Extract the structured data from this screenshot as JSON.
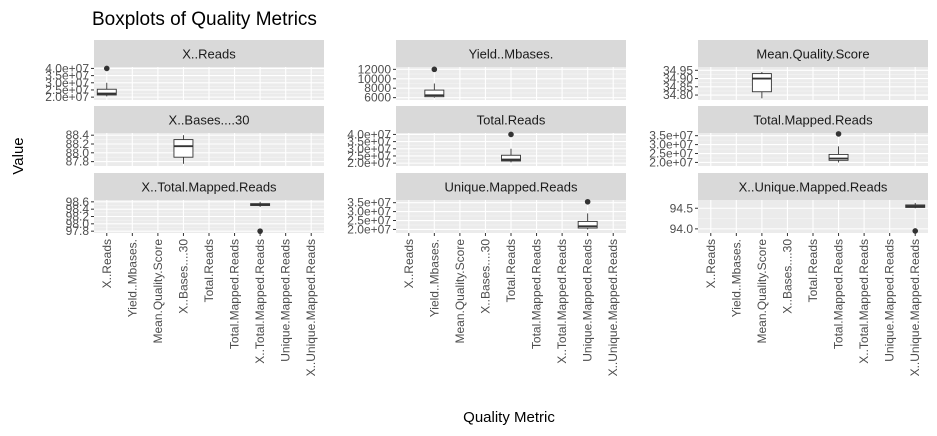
{
  "chart_data": {
    "type": "boxplot",
    "title": "Boxplots of Quality Metrics",
    "xlabel": "Quality Metric",
    "ylabel": "Value",
    "categories": [
      "X..Reads",
      "Yield..Mbases.",
      "Mean.Quality.Score",
      "X..Bases....30",
      "Total.Reads",
      "Total.Mapped.Reads",
      "X..Total.Mapped.Reads",
      "Unique.Mapped.Reads",
      "X..Unique.Mapped.Reads"
    ],
    "facet_scales": "free_y",
    "grid": true,
    "panels": [
      {
        "title": "X..Reads",
        "category": "X..Reads",
        "ylim": [
          18000000,
          41000000
        ],
        "ticks": [
          {
            "v": 20000000,
            "label": "2.0e+07"
          },
          {
            "v": 25000000,
            "label": "2.5e+07"
          },
          {
            "v": 30000000,
            "label": "3.0e+07"
          },
          {
            "v": 35000000,
            "label": "3.5e+07"
          },
          {
            "v": 40000000,
            "label": "4.0e+07"
          }
        ],
        "box": {
          "min": 20500000,
          "q1": 21500000,
          "median": 22500000,
          "q3": 25500000,
          "max": 30000000,
          "outliers": [
            40000000
          ]
        }
      },
      {
        "title": "Yield..Mbases.",
        "category": "Yield..Mbases.",
        "ylim": [
          5500,
          12500
        ],
        "ticks": [
          {
            "v": 6000,
            "label": "6000"
          },
          {
            "v": 8000,
            "label": "8000"
          },
          {
            "v": 10000,
            "label": "10000"
          },
          {
            "v": 12000,
            "label": "12000"
          }
        ],
        "box": {
          "min": 6000,
          "q1": 6200,
          "median": 6500,
          "q3": 7600,
          "max": 9000,
          "outliers": [
            12000
          ]
        }
      },
      {
        "title": "Mean.Quality.Score",
        "category": "Mean.Quality.Score",
        "ylim": [
          34.77,
          34.97
        ],
        "ticks": [
          {
            "v": 34.8,
            "label": "34.80"
          },
          {
            "v": 34.85,
            "label": "34.85"
          },
          {
            "v": 34.9,
            "label": "34.90"
          },
          {
            "v": 34.95,
            "label": "34.95"
          }
        ],
        "box": {
          "min": 34.78,
          "q1": 34.82,
          "median": 34.9,
          "q3": 34.93,
          "max": 34.94,
          "outliers": []
        }
      },
      {
        "title": "X..Bases....30",
        "category": "X..Bases....30",
        "ylim": [
          87.7,
          88.45
        ],
        "ticks": [
          {
            "v": 87.8,
            "label": "87.8"
          },
          {
            "v": 88.0,
            "label": "88.0"
          },
          {
            "v": 88.2,
            "label": "88.2"
          },
          {
            "v": 88.4,
            "label": "88.4"
          }
        ],
        "box": {
          "min": 87.75,
          "q1": 87.9,
          "median": 88.15,
          "q3": 88.3,
          "max": 88.4,
          "outliers": []
        }
      },
      {
        "title": "Total.Reads",
        "category": "Total.Reads",
        "ylim": [
          18000000,
          41000000
        ],
        "ticks": [
          {
            "v": 20000000,
            "label": "2.0e+07"
          },
          {
            "v": 25000000,
            "label": "2.5e+07"
          },
          {
            "v": 30000000,
            "label": "3.0e+07"
          },
          {
            "v": 35000000,
            "label": "3.5e+07"
          },
          {
            "v": 40000000,
            "label": "4.0e+07"
          }
        ],
        "box": {
          "min": 20500000,
          "q1": 21500000,
          "median": 22500000,
          "q3": 25500000,
          "max": 30000000,
          "outliers": [
            40000000
          ]
        }
      },
      {
        "title": "Total.Mapped.Reads",
        "category": "Total.Mapped.Reads",
        "ylim": [
          18000000,
          36500000
        ],
        "ticks": [
          {
            "v": 20000000,
            "label": "2.0e+07"
          },
          {
            "v": 25000000,
            "label": "2.5e+07"
          },
          {
            "v": 30000000,
            "label": "3.0e+07"
          },
          {
            "v": 35000000,
            "label": "3.5e+07"
          }
        ],
        "box": {
          "min": 20000000,
          "q1": 21200000,
          "median": 22200000,
          "q3": 24500000,
          "max": 29000000,
          "outliers": [
            36000000
          ]
        }
      },
      {
        "title": "X..Total.Mapped.Reads",
        "category": "X..Total.Mapped.Reads",
        "ylim": [
          97.75,
          98.65
        ],
        "ticks": [
          {
            "v": 97.8,
            "label": "97.8"
          },
          {
            "v": 98.0,
            "label": "98.0"
          },
          {
            "v": 98.2,
            "label": "98.2"
          },
          {
            "v": 98.4,
            "label": "98.4"
          },
          {
            "v": 98.6,
            "label": "98.6"
          }
        ],
        "box": {
          "min": 98.46,
          "q1": 98.5,
          "median": 98.52,
          "q3": 98.55,
          "max": 98.6,
          "outliers": [
            97.8
          ]
        }
      },
      {
        "title": "Unique.Mapped.Reads",
        "category": "Unique.Mapped.Reads",
        "ylim": [
          18000000,
          36500000
        ],
        "ticks": [
          {
            "v": 20000000,
            "label": "2.0e+07"
          },
          {
            "v": 25000000,
            "label": "2.5e+07"
          },
          {
            "v": 30000000,
            "label": "3.0e+07"
          },
          {
            "v": 35000000,
            "label": "3.5e+07"
          }
        ],
        "box": {
          "min": 20000000,
          "q1": 20800000,
          "median": 21800000,
          "q3": 24500000,
          "max": 29000000,
          "outliers": [
            35500000
          ]
        }
      },
      {
        "title": "X..Unique.Mapped.Reads",
        "category": "X..Unique.Mapped.Reads",
        "ylim": [
          93.9,
          94.7
        ],
        "ticks": [
          {
            "v": 94.0,
            "label": "94.0"
          },
          {
            "v": 94.5,
            "label": "94.5"
          }
        ],
        "box": {
          "min": 94.5,
          "q1": 94.52,
          "median": 94.55,
          "q3": 94.58,
          "max": 94.63,
          "outliers": [
            93.95
          ]
        }
      }
    ]
  },
  "colors": {
    "panel_bg": "#ebebeb",
    "grid_major": "#ffffff",
    "grid_minor": "#f5f5f5",
    "strip_bg": "#d9d9d9",
    "box_fill": "#ffffff",
    "box_stroke": "#333333",
    "outlier": "#333333",
    "tick_text": "#4d4d4d"
  }
}
